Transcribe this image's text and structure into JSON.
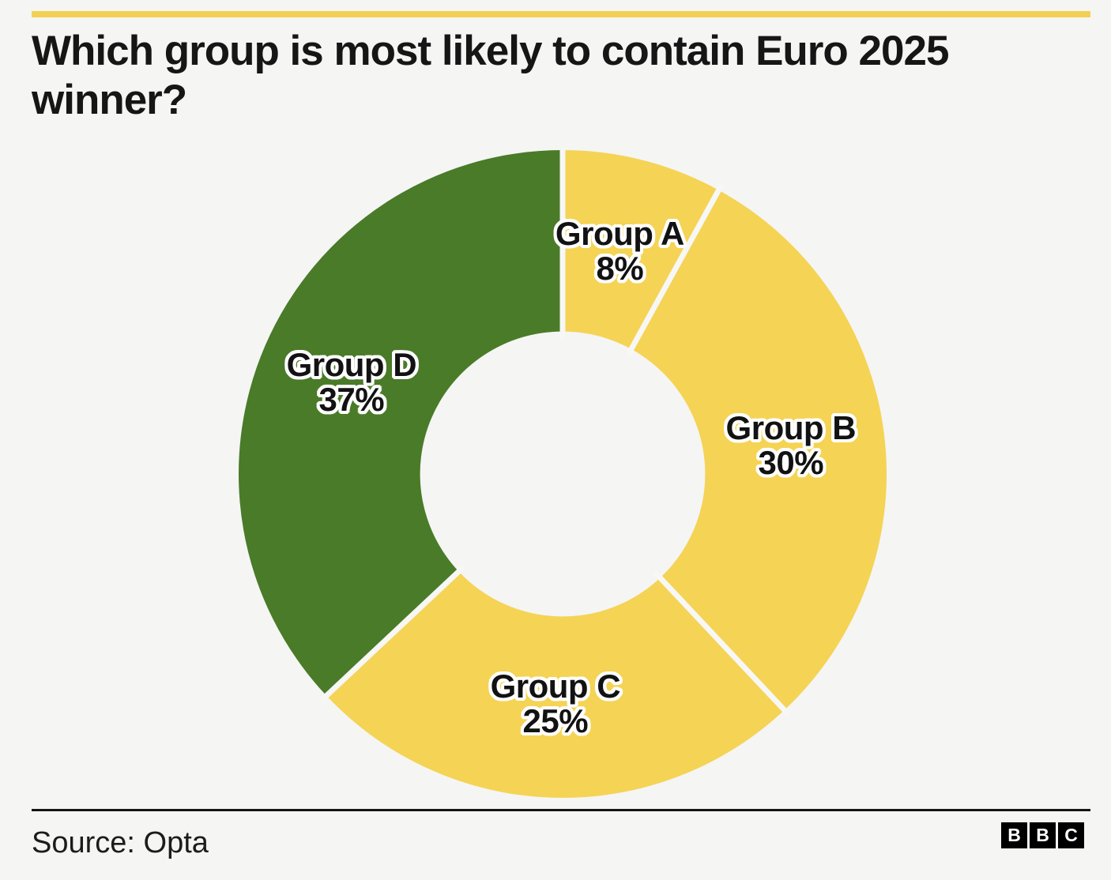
{
  "page": {
    "background": "#f5f5f4",
    "accent_bar_color": "#f2d053"
  },
  "header": {
    "title": "Which group is most likely to contain Euro 2025 winner?"
  },
  "chart_data": {
    "type": "pie",
    "subtype": "donut",
    "title": "Which group is most likely to contain Euro 2025 winner?",
    "unit": "%",
    "start_angle_deg": 0,
    "direction": "clockwise",
    "inner_radius_ratio": 0.44,
    "label_radius_ratio": 0.71,
    "separator_color": "#f7f7f6",
    "separator_width": 7,
    "legend": "none",
    "segments": [
      {
        "label": "Group A",
        "value": 8,
        "display": "8%",
        "color": "#f5d354"
      },
      {
        "label": "Group B",
        "value": 30,
        "display": "30%",
        "color": "#f5d354"
      },
      {
        "label": "Group C",
        "value": 25,
        "display": "25%",
        "color": "#f5d354"
      },
      {
        "label": "Group D",
        "value": 37,
        "display": "37%",
        "color": "#4a7b28"
      }
    ]
  },
  "footer": {
    "source": "Source: Opta",
    "logo_letters": [
      "B",
      "B",
      "C"
    ]
  }
}
